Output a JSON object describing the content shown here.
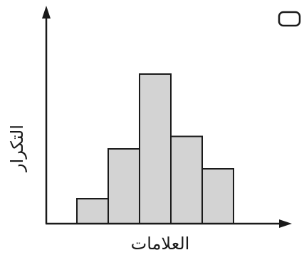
{
  "chart_data": {
    "type": "bar",
    "title": "",
    "xlabel": "العلامات",
    "ylabel": "التكرار",
    "categories": [
      "",
      "",
      "",
      "",
      ""
    ],
    "values": [
      1,
      3,
      6,
      3.5,
      2.2
    ],
    "ylim": [
      0,
      8
    ],
    "grid": false,
    "legend": "none",
    "bar_fill": "#d3d3d3",
    "bar_stroke": "#1a1a1a",
    "axis_color": "#1a1a1a"
  }
}
